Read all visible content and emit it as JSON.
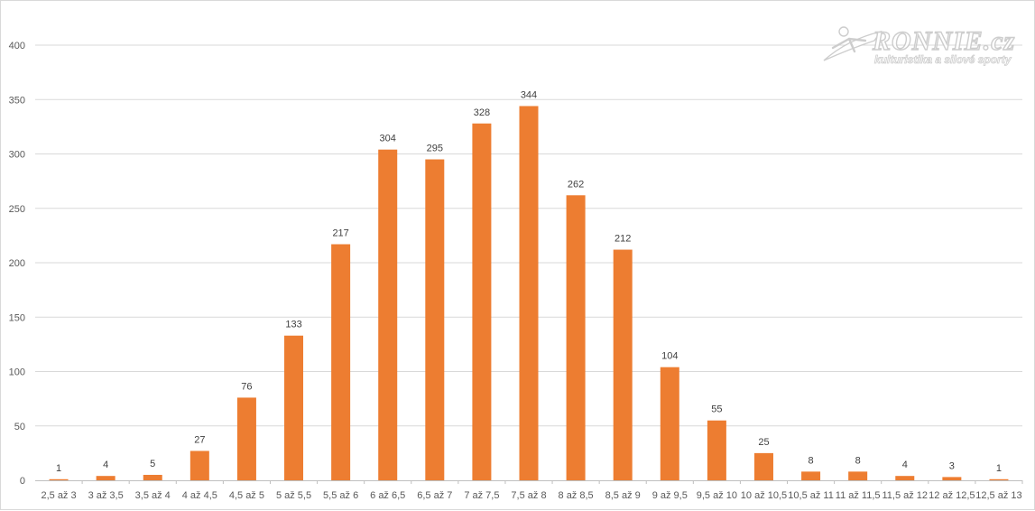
{
  "chart_data": {
    "type": "bar",
    "title": "",
    "xlabel": "",
    "ylabel": "",
    "ylim": [
      0,
      400
    ],
    "yticks": [
      0,
      50,
      100,
      150,
      200,
      250,
      300,
      350,
      400
    ],
    "grid": true,
    "legend": "none",
    "bar_color": "#ED7D31",
    "categories": [
      "2,5 až 3",
      "3 až 3,5",
      "3,5 až 4",
      "4 až 4,5",
      "4,5 až 5",
      "5 až 5,5",
      "5,5 až 6",
      "6 až 6,5",
      "6,5 až 7",
      "7 až 7,5",
      "7,5 až 8",
      "8 až 8,5",
      "8,5 až 9",
      "9 až 9,5",
      "9,5 až 10",
      "10 až 10,5",
      "10,5 až 11",
      "11 až 11,5",
      "11,5 až 12",
      "12 až 12,5",
      "12,5 až 13"
    ],
    "values": [
      1,
      4,
      5,
      27,
      76,
      133,
      217,
      304,
      295,
      328,
      344,
      262,
      212,
      104,
      55,
      25,
      8,
      8,
      4,
      3,
      1
    ]
  },
  "watermark": {
    "brand": "RONNIE.cz",
    "tagline": "kulturistika a silové sporty"
  }
}
